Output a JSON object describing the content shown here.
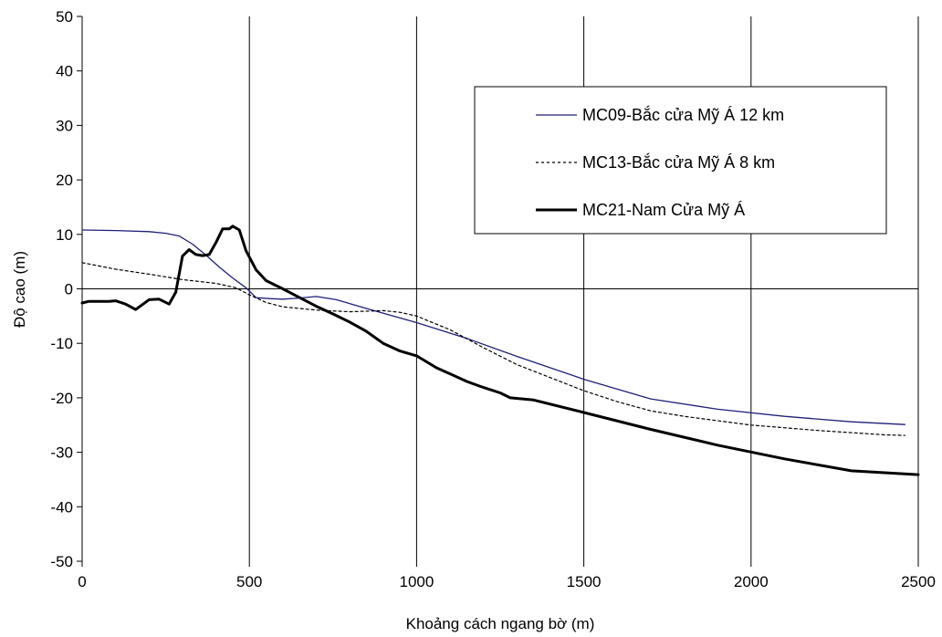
{
  "chart_data": {
    "type": "line",
    "xlabel": "Khoảng cách ngang bờ (m)",
    "ylabel": "Độ cao (m)",
    "xlim": [
      0,
      2500
    ],
    "ylim": [
      -50,
      50
    ],
    "xticks": [
      0,
      500,
      1000,
      1500,
      2000,
      2500
    ],
    "yticks": [
      -50,
      -40,
      -30,
      -20,
      -10,
      0,
      10,
      20,
      30,
      40,
      50
    ],
    "grid": "vertical",
    "legend_position": "right",
    "series": [
      {
        "name": "MC09-Bắc cửa Mỹ Á 12 km",
        "color": "#1f1f7a",
        "style": "thin-solid",
        "x": [
          0,
          100,
          200,
          250,
          290,
          330,
          370,
          410,
          450,
          490,
          520,
          560,
          600,
          650,
          700,
          760,
          850,
          1000,
          1150,
          1300,
          1500,
          1700,
          1900,
          2100,
          2300,
          2460
        ],
        "y": [
          10.8,
          10.7,
          10.5,
          10.2,
          9.7,
          8.2,
          6.2,
          4.0,
          2.0,
          0.2,
          -1.6,
          -1.8,
          -1.9,
          -1.7,
          -1.4,
          -2.0,
          -3.6,
          -6.2,
          -9.1,
          -12.4,
          -16.6,
          -20.2,
          -22.1,
          -23.4,
          -24.4,
          -24.9
        ]
      },
      {
        "name": "MC13-Bắc cửa Mỹ Á 8 km",
        "color": "#000000",
        "style": "dotted",
        "x": [
          0,
          100,
          200,
          300,
          400,
          460,
          500,
          550,
          600,
          700,
          800,
          900,
          950,
          1000,
          1100,
          1200,
          1300,
          1400,
          1500,
          1600,
          1700,
          1800,
          1900,
          2000,
          2100,
          2200,
          2300,
          2400,
          2460
        ],
        "y": [
          4.8,
          3.6,
          2.7,
          1.7,
          1.0,
          0.2,
          -1.1,
          -2.5,
          -3.3,
          -3.9,
          -4.2,
          -4.0,
          -4.3,
          -5.0,
          -7.5,
          -10.8,
          -13.9,
          -16.3,
          -18.7,
          -20.7,
          -22.4,
          -23.4,
          -24.2,
          -25.0,
          -25.5,
          -26.0,
          -26.4,
          -26.8,
          -26.9
        ]
      },
      {
        "name": "MC21-Nam Cửa Mỹ Á",
        "color": "#000000",
        "style": "thick-solid",
        "x": [
          0,
          20,
          50,
          80,
          100,
          130,
          160,
          200,
          230,
          260,
          280,
          300,
          320,
          340,
          360,
          380,
          400,
          420,
          440,
          450,
          470,
          490,
          520,
          550,
          600,
          650,
          700,
          750,
          800,
          850,
          900,
          950,
          1000,
          1030,
          1060,
          1100,
          1150,
          1200,
          1250,
          1280,
          1350,
          1500,
          1700,
          1900,
          2100,
          2300,
          2500
        ],
        "y": [
          -2.6,
          -2.3,
          -2.3,
          -2.3,
          -2.2,
          -2.8,
          -3.8,
          -2.0,
          -1.9,
          -2.8,
          -0.6,
          6.0,
          7.2,
          6.3,
          6.1,
          6.3,
          8.5,
          11.0,
          11.0,
          11.5,
          10.8,
          7.0,
          3.5,
          1.5,
          0.0,
          -1.6,
          -3.2,
          -4.6,
          -6.1,
          -7.8,
          -10.0,
          -11.4,
          -12.3,
          -13.4,
          -14.5,
          -15.6,
          -17.0,
          -18.1,
          -19.1,
          -20.0,
          -20.4,
          -22.7,
          -25.8,
          -28.7,
          -31.2,
          -33.4,
          -34.1
        ]
      }
    ]
  }
}
